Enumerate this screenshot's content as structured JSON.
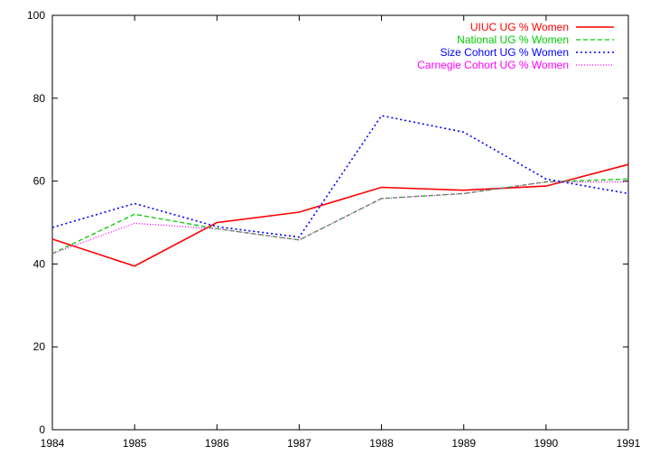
{
  "chart_data": {
    "type": "line",
    "title": "",
    "xlabel": "",
    "ylabel": "",
    "x": [
      1984,
      1985,
      1986,
      1987,
      1988,
      1989,
      1990,
      1991
    ],
    "xticks": [
      "1984",
      "1985",
      "1986",
      "1987",
      "1988",
      "1989",
      "1990",
      "1991"
    ],
    "yticks": [
      "0",
      "20",
      "40",
      "60",
      "80",
      "100"
    ],
    "xlim": [
      1984,
      1991
    ],
    "ylim": [
      0,
      100
    ],
    "legend_position": "top-right",
    "series": [
      {
        "name": "UIUC UG % Women",
        "color": "#ff0000",
        "dash": "solid",
        "values": [
          46.0,
          39.5,
          50.0,
          52.5,
          58.5,
          57.8,
          58.8,
          64.0
        ]
      },
      {
        "name": "National UG % Women",
        "color": "#00cc00",
        "dash": "dashed",
        "values": [
          42.5,
          52.0,
          48.5,
          45.8,
          55.8,
          57.0,
          59.8,
          60.5
        ]
      },
      {
        "name": "Size Cohort UG % Women",
        "color": "#0000ff",
        "dash": "dotted",
        "values": [
          48.8,
          54.6,
          49.0,
          46.5,
          75.8,
          71.8,
          60.5,
          57.0
        ]
      },
      {
        "name": "Carnegie Cohort UG % Women",
        "color": "#ff00ff",
        "dash": "fine-dotted",
        "values": [
          42.5,
          49.8,
          48.5,
          45.8,
          55.8,
          57.0,
          59.8,
          59.8
        ]
      }
    ]
  }
}
